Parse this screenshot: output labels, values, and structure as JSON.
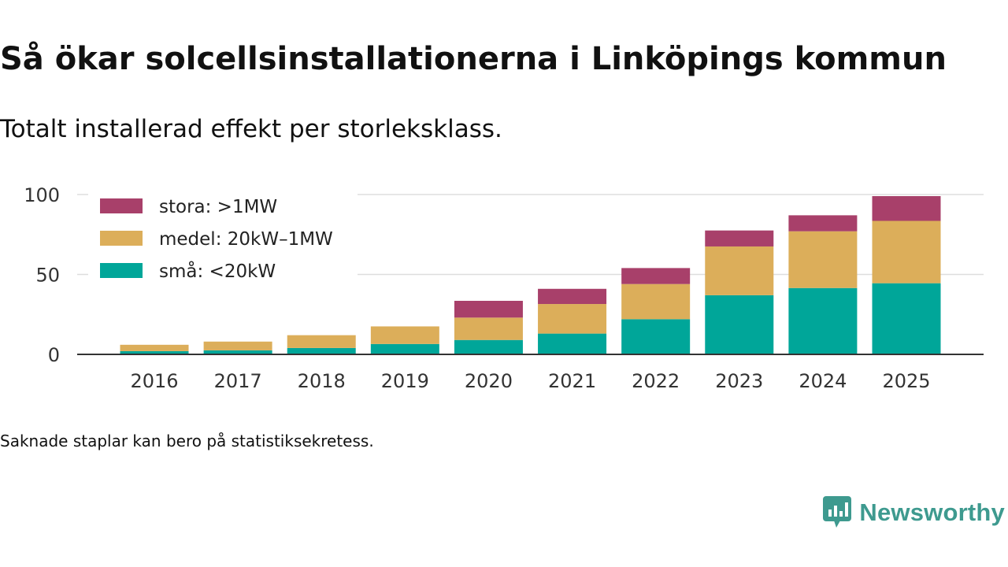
{
  "title": "Så ökar solcellsinstallationerna i Linköpings kommun",
  "subtitle": "Totalt installerad effekt per storleksklass.",
  "footnote": "Saknade staplar kan bero på statistiksekretess.",
  "brand": {
    "name": "Newsworthy",
    "icon": "newsworthy-logo-icon",
    "color": "#3e9a8f"
  },
  "chart_data": {
    "type": "bar",
    "stacked": true,
    "categories": [
      "2016",
      "2017",
      "2018",
      "2019",
      "2020",
      "2021",
      "2022",
      "2023",
      "2024",
      "2025"
    ],
    "series": [
      {
        "name": "små: <20kW",
        "color": "#00a699",
        "values": [
          2,
          2.5,
          4,
          6.5,
          9,
          13,
          22,
          37,
          41.5,
          44.5
        ]
      },
      {
        "name": "medel: 20kW–1MW",
        "color": "#dcae5a",
        "values": [
          4,
          5.5,
          8,
          11,
          14,
          18.5,
          22,
          30.5,
          35.5,
          39
        ]
      },
      {
        "name": "stora: >1MW",
        "color": "#a8406a",
        "values": [
          0,
          0,
          0,
          0,
          10.5,
          9.5,
          10,
          10,
          10,
          15.5
        ]
      }
    ],
    "legend_order": [
      "stora: >1MW",
      "medel: 20kW–1MW",
      "små: <20kW"
    ],
    "legend_position": "top-left",
    "xlabel": "",
    "ylabel": "",
    "ylim": [
      0,
      100
    ],
    "yticks": [
      0,
      50,
      100
    ],
    "grid": true
  }
}
